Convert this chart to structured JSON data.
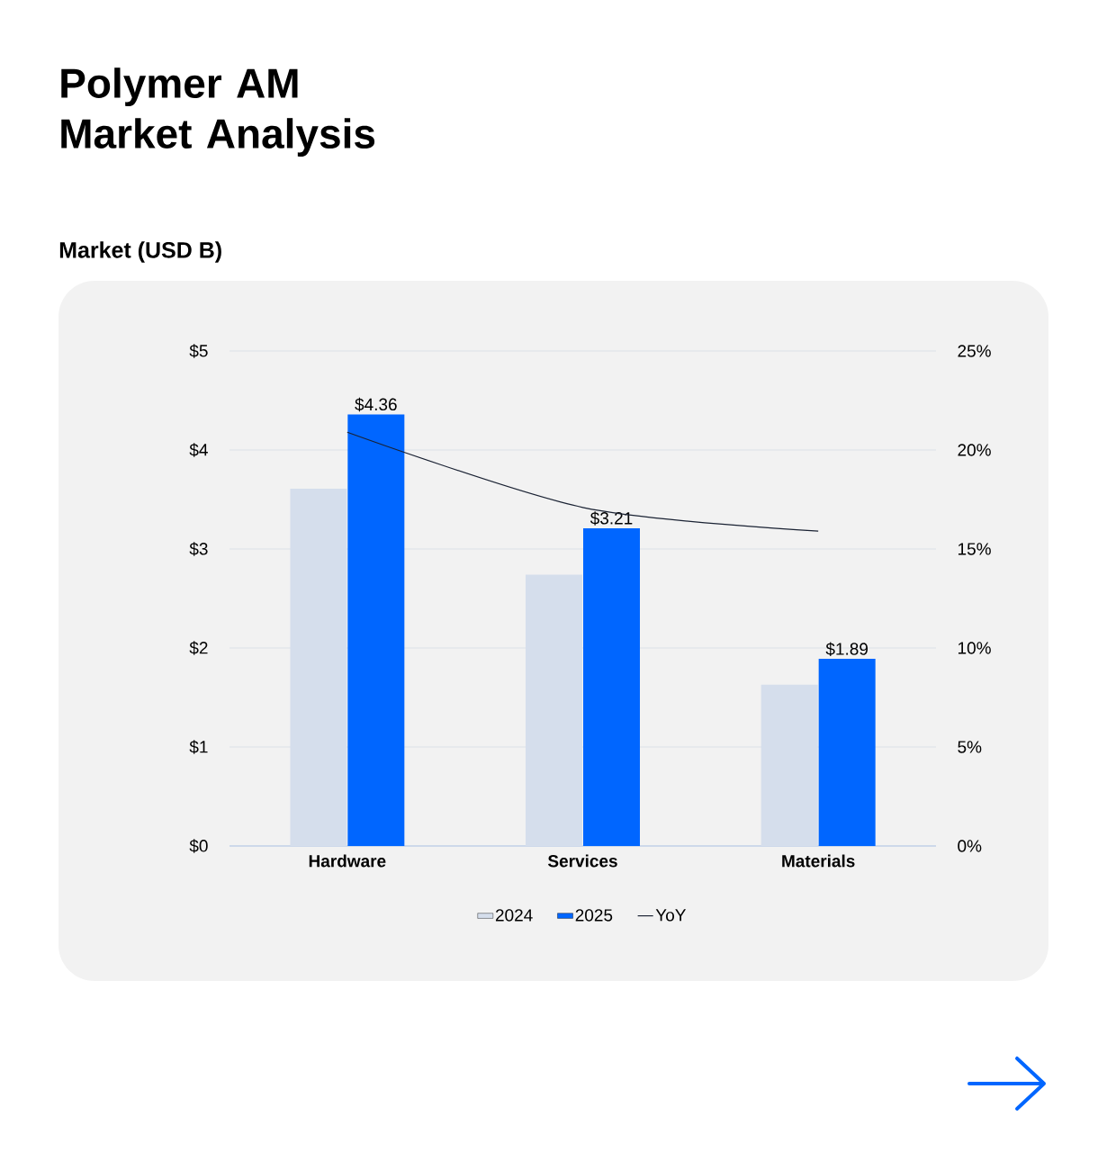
{
  "chart_data": {
    "type": "bar",
    "title": "Polymer AM Market Analysis",
    "subtitle": "Market (USD B)",
    "categories": [
      "Hardware",
      "Services",
      "Materials"
    ],
    "series": [
      {
        "name": "2024",
        "color": "#d5deec",
        "values": [
          3.61,
          2.74,
          1.63
        ]
      },
      {
        "name": "2025",
        "color": "#0066ff",
        "values": [
          4.36,
          3.21,
          1.89
        ],
        "value_labels": [
          "$4.36",
          "$3.21",
          "$1.89"
        ]
      },
      {
        "name": "YoY",
        "type": "line",
        "axis": "y2",
        "color": "#1a2233",
        "values": [
          20.9,
          17.1,
          15.9
        ]
      }
    ],
    "ylim": [
      0,
      5
    ],
    "yticks": [
      {
        "value": 0,
        "label": "$0"
      },
      {
        "value": 1,
        "label": "$1"
      },
      {
        "value": 2,
        "label": "$2"
      },
      {
        "value": 3,
        "label": "$3"
      },
      {
        "value": 4,
        "label": "$4"
      },
      {
        "value": 5,
        "label": "$5"
      }
    ],
    "y2lim": [
      0,
      25
    ],
    "y2ticks": [
      {
        "value": 0,
        "label": "0%"
      },
      {
        "value": 5,
        "label": "5%"
      },
      {
        "value": 10,
        "label": "10%"
      },
      {
        "value": 15,
        "label": "15%"
      },
      {
        "value": 20,
        "label": "20%"
      },
      {
        "value": 25,
        "label": "25%"
      }
    ],
    "grid": "y",
    "legend": "bottom",
    "marker": "none",
    "line_style": "solid"
  }
}
